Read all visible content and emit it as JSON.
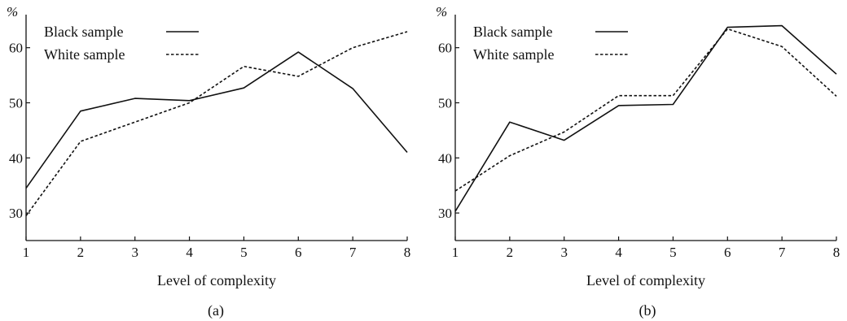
{
  "chart_data": [
    {
      "type": "line",
      "panel_label": "(a)",
      "xlabel": "Level of complexity",
      "ylabel": "%",
      "x": [
        1,
        2,
        3,
        4,
        5,
        6,
        7,
        8
      ],
      "xlim": [
        1,
        8
      ],
      "ylim": [
        25,
        66
      ],
      "yticks": [
        30,
        40,
        50,
        60
      ],
      "grid": false,
      "legend_position": "top-left",
      "series": [
        {
          "name": "Black sample",
          "style": "solid",
          "values": [
            34.5,
            48.5,
            50.8,
            50.4,
            52.7,
            59.2,
            52.6,
            41.0
          ]
        },
        {
          "name": "White sample",
          "style": "dotted",
          "values": [
            29.5,
            43.0,
            46.5,
            50.0,
            56.6,
            54.8,
            60.0,
            62.9
          ]
        }
      ]
    },
    {
      "type": "line",
      "panel_label": "(b)",
      "xlabel": "Level of complexity",
      "ylabel": "%",
      "x": [
        1,
        2,
        3,
        4,
        5,
        6,
        7,
        8
      ],
      "xlim": [
        1,
        8
      ],
      "ylim": [
        25,
        66
      ],
      "yticks": [
        30,
        40,
        50,
        60
      ],
      "grid": false,
      "legend_position": "top-left",
      "series": [
        {
          "name": "Black sample",
          "style": "solid",
          "values": [
            30.3,
            46.5,
            43.2,
            49.5,
            49.7,
            63.7,
            64.0,
            55.2
          ]
        },
        {
          "name": "White sample",
          "style": "dotted",
          "values": [
            34.0,
            40.4,
            44.7,
            51.3,
            51.3,
            63.4,
            60.2,
            51.2
          ]
        }
      ]
    }
  ]
}
